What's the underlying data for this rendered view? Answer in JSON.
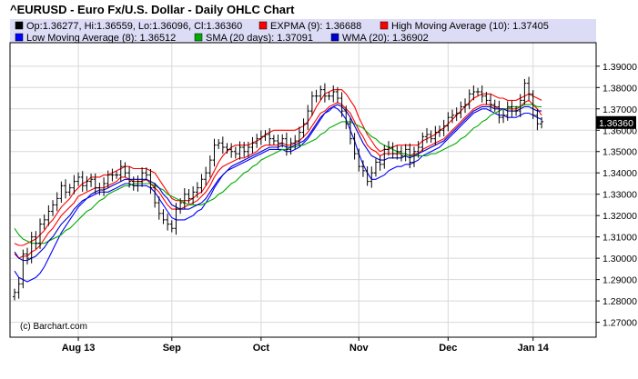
{
  "chart_data": {
    "type": "line",
    "title": "^EURUSD - Euro Fx/U.S. Dollar - Daily OHLC Chart",
    "legend": [
      {
        "text": "Op:1.36277, Hi:1.36559, Lo:1.36096, Cl:1.36360",
        "color": "#000000"
      },
      {
        "text": "EXPMA (9): 1.36688",
        "color": "#ff0000"
      },
      {
        "text": "High Moving Average (10): 1.37405",
        "color": "#ff0000"
      },
      {
        "text": "Low Moving Average (8): 1.36512",
        "color": "#0000ff"
      },
      {
        "text": "SMA (20 days): 1.37091",
        "color": "#00aa00"
      },
      {
        "text": "WMA (20): 1.36902",
        "color": "#0000cc"
      }
    ],
    "credit": "(c) Barchart.com",
    "last_value": "1.36360",
    "ylim": [
      1.263,
      1.401
    ],
    "y_ticks": [
      "1.27000",
      "1.28000",
      "1.29000",
      "1.30000",
      "1.31000",
      "1.32000",
      "1.33000",
      "1.34000",
      "1.35000",
      "1.36000",
      "1.37000",
      "1.38000",
      "1.39000"
    ],
    "x_ticks": [
      {
        "label": "Aug 13",
        "bar": 15
      },
      {
        "label": "Sep",
        "bar": 37
      },
      {
        "label": "Oct",
        "bar": 58
      },
      {
        "label": "Nov",
        "bar": 81
      },
      {
        "label": "Dec",
        "bar": 102
      },
      {
        "label": "Jan 14",
        "bar": 122
      }
    ],
    "x_range_bars": [
      0,
      127
    ],
    "close": [
      1.284,
      1.288,
      1.302,
      1.3,
      1.31,
      1.307,
      1.316,
      1.318,
      1.322,
      1.325,
      1.328,
      1.334,
      1.331,
      1.333,
      1.336,
      1.338,
      1.334,
      1.336,
      1.337,
      1.333,
      1.332,
      1.335,
      1.339,
      1.339,
      1.339,
      1.343,
      1.34,
      1.336,
      1.334,
      1.336,
      1.34,
      1.339,
      1.333,
      1.326,
      1.321,
      1.318,
      1.316,
      1.314,
      1.323,
      1.326,
      1.33,
      1.328,
      1.331,
      1.333,
      1.337,
      1.34,
      1.346,
      1.353,
      1.354,
      1.352,
      1.351,
      1.35,
      1.349,
      1.352,
      1.35,
      1.352,
      1.354,
      1.356,
      1.357,
      1.358,
      1.356,
      1.355,
      1.354,
      1.356,
      1.351,
      1.354,
      1.355,
      1.359,
      1.363,
      1.369,
      1.376,
      1.376,
      1.379,
      1.376,
      1.376,
      1.378,
      1.375,
      1.369,
      1.363,
      1.356,
      1.349,
      1.343,
      1.341,
      1.336,
      1.34,
      1.345,
      1.344,
      1.351,
      1.352,
      1.349,
      1.35,
      1.348,
      1.351,
      1.345,
      1.35,
      1.352,
      1.357,
      1.358,
      1.356,
      1.359,
      1.36,
      1.362,
      1.366,
      1.367,
      1.368,
      1.371,
      1.372,
      1.377,
      1.378,
      1.378,
      1.376,
      1.374,
      1.372,
      1.371,
      1.366,
      1.367,
      1.371,
      1.369,
      1.369,
      1.374,
      1.382,
      1.377,
      1.367,
      1.363,
      1.364
    ],
    "series": [
      {
        "name": "EXPMA (9)",
        "color": "#ff0000",
        "values": [
          1.302,
          1.3,
          1.301,
          1.301,
          1.303,
          1.304,
          1.306,
          1.309,
          1.312,
          1.314,
          1.317,
          1.32,
          1.322,
          1.324,
          1.326,
          1.329,
          1.33,
          1.331,
          1.332,
          1.333,
          1.333,
          1.333,
          1.334,
          1.335,
          1.336,
          1.338,
          1.338,
          1.337,
          1.336,
          1.336,
          1.336,
          1.337,
          1.335,
          1.333,
          1.331,
          1.328,
          1.325,
          1.323,
          1.323,
          1.323,
          1.324,
          1.325,
          1.326,
          1.327,
          1.329,
          1.331,
          1.334,
          1.338,
          1.341,
          1.343,
          1.344,
          1.345,
          1.346,
          1.347,
          1.347,
          1.348,
          1.349,
          1.35,
          1.352,
          1.353,
          1.353,
          1.353,
          1.353,
          1.354,
          1.353,
          1.353,
          1.354,
          1.355,
          1.357,
          1.359,
          1.362,
          1.365,
          1.368,
          1.369,
          1.371,
          1.372,
          1.373,
          1.372,
          1.37,
          1.368,
          1.364,
          1.36,
          1.357,
          1.353,
          1.351,
          1.35,
          1.348,
          1.349,
          1.349,
          1.349,
          1.349,
          1.349,
          1.349,
          1.348,
          1.349,
          1.349,
          1.351,
          1.352,
          1.353,
          1.354,
          1.355,
          1.356,
          1.358,
          1.36,
          1.362,
          1.364,
          1.366,
          1.368,
          1.37,
          1.371,
          1.372,
          1.372,
          1.372,
          1.371,
          1.37,
          1.37,
          1.37,
          1.37,
          1.37,
          1.371,
          1.373,
          1.374,
          1.372,
          1.37,
          1.367
        ]
      },
      {
        "name": "High Moving Average (10)",
        "color": "#ff0000",
        "values": [
          1.307,
          1.306,
          1.306,
          1.307,
          1.308,
          1.309,
          1.311,
          1.313,
          1.316,
          1.318,
          1.321,
          1.324,
          1.326,
          1.328,
          1.331,
          1.333,
          1.335,
          1.336,
          1.338,
          1.338,
          1.338,
          1.339,
          1.339,
          1.34,
          1.341,
          1.342,
          1.343,
          1.343,
          1.342,
          1.342,
          1.342,
          1.342,
          1.341,
          1.34,
          1.337,
          1.334,
          1.331,
          1.328,
          1.327,
          1.327,
          1.327,
          1.327,
          1.328,
          1.33,
          1.331,
          1.334,
          1.337,
          1.341,
          1.345,
          1.348,
          1.35,
          1.352,
          1.353,
          1.353,
          1.353,
          1.353,
          1.354,
          1.355,
          1.356,
          1.358,
          1.359,
          1.36,
          1.36,
          1.36,
          1.36,
          1.36,
          1.36,
          1.361,
          1.362,
          1.364,
          1.367,
          1.371,
          1.374,
          1.377,
          1.378,
          1.379,
          1.379,
          1.379,
          1.377,
          1.374,
          1.371,
          1.366,
          1.362,
          1.358,
          1.355,
          1.352,
          1.35,
          1.351,
          1.351,
          1.352,
          1.353,
          1.353,
          1.353,
          1.353,
          1.353,
          1.353,
          1.355,
          1.356,
          1.357,
          1.358,
          1.36,
          1.361,
          1.363,
          1.365,
          1.367,
          1.369,
          1.371,
          1.373,
          1.375,
          1.376,
          1.377,
          1.377,
          1.377,
          1.376,
          1.375,
          1.375,
          1.374,
          1.374,
          1.374,
          1.375,
          1.376,
          1.377,
          1.376,
          1.375,
          1.374
        ]
      },
      {
        "name": "Low Moving Average (8)",
        "color": "#0000ff",
        "values": [
          1.294,
          1.291,
          1.29,
          1.289,
          1.29,
          1.291,
          1.293,
          1.296,
          1.3,
          1.304,
          1.308,
          1.312,
          1.315,
          1.318,
          1.321,
          1.324,
          1.326,
          1.328,
          1.329,
          1.33,
          1.331,
          1.331,
          1.331,
          1.332,
          1.333,
          1.334,
          1.335,
          1.335,
          1.334,
          1.334,
          1.334,
          1.334,
          1.333,
          1.331,
          1.328,
          1.325,
          1.322,
          1.319,
          1.318,
          1.318,
          1.318,
          1.319,
          1.32,
          1.322,
          1.323,
          1.326,
          1.329,
          1.333,
          1.336,
          1.339,
          1.341,
          1.342,
          1.343,
          1.344,
          1.345,
          1.346,
          1.347,
          1.348,
          1.349,
          1.35,
          1.351,
          1.351,
          1.351,
          1.351,
          1.35,
          1.35,
          1.351,
          1.352,
          1.354,
          1.356,
          1.359,
          1.362,
          1.365,
          1.368,
          1.369,
          1.371,
          1.37,
          1.368,
          1.365,
          1.36,
          1.355,
          1.349,
          1.344,
          1.34,
          1.337,
          1.337,
          1.338,
          1.339,
          1.341,
          1.342,
          1.343,
          1.343,
          1.344,
          1.344,
          1.345,
          1.346,
          1.348,
          1.349,
          1.35,
          1.351,
          1.352,
          1.354,
          1.356,
          1.358,
          1.36,
          1.362,
          1.364,
          1.366,
          1.368,
          1.369,
          1.37,
          1.37,
          1.369,
          1.368,
          1.367,
          1.367,
          1.366,
          1.366,
          1.366,
          1.367,
          1.368,
          1.368,
          1.367,
          1.366,
          1.365
        ]
      },
      {
        "name": "SMA (20 days)",
        "color": "#00aa00",
        "values": [
          1.314,
          1.311,
          1.309,
          1.308,
          1.307,
          1.307,
          1.307,
          1.307,
          1.308,
          1.309,
          1.31,
          1.311,
          1.313,
          1.314,
          1.316,
          1.318,
          1.32,
          1.322,
          1.323,
          1.325,
          1.327,
          1.328,
          1.33,
          1.331,
          1.332,
          1.333,
          1.334,
          1.334,
          1.335,
          1.335,
          1.335,
          1.335,
          1.335,
          1.334,
          1.333,
          1.332,
          1.33,
          1.329,
          1.328,
          1.327,
          1.326,
          1.325,
          1.325,
          1.325,
          1.325,
          1.326,
          1.327,
          1.328,
          1.33,
          1.331,
          1.333,
          1.335,
          1.336,
          1.338,
          1.34,
          1.341,
          1.343,
          1.344,
          1.346,
          1.347,
          1.348,
          1.349,
          1.35,
          1.351,
          1.351,
          1.352,
          1.352,
          1.353,
          1.353,
          1.354,
          1.355,
          1.356,
          1.358,
          1.359,
          1.361,
          1.362,
          1.363,
          1.364,
          1.364,
          1.364,
          1.363,
          1.362,
          1.361,
          1.359,
          1.357,
          1.356,
          1.354,
          1.353,
          1.352,
          1.351,
          1.35,
          1.349,
          1.349,
          1.348,
          1.348,
          1.348,
          1.348,
          1.348,
          1.349,
          1.349,
          1.35,
          1.351,
          1.352,
          1.353,
          1.354,
          1.356,
          1.357,
          1.359,
          1.361,
          1.362,
          1.364,
          1.365,
          1.367,
          1.368,
          1.369,
          1.37,
          1.37,
          1.371,
          1.371,
          1.371,
          1.372,
          1.372,
          1.372,
          1.371,
          1.371
        ]
      },
      {
        "name": "WMA (20)",
        "color": "#0000cc",
        "values": [
          1.303,
          1.3,
          1.299,
          1.299,
          1.3,
          1.301,
          1.303,
          1.305,
          1.308,
          1.31,
          1.313,
          1.316,
          1.318,
          1.32,
          1.323,
          1.325,
          1.327,
          1.328,
          1.33,
          1.331,
          1.332,
          1.332,
          1.333,
          1.334,
          1.335,
          1.336,
          1.337,
          1.337,
          1.337,
          1.337,
          1.337,
          1.337,
          1.336,
          1.335,
          1.333,
          1.33,
          1.328,
          1.325,
          1.324,
          1.323,
          1.323,
          1.323,
          1.324,
          1.325,
          1.326,
          1.328,
          1.331,
          1.334,
          1.337,
          1.339,
          1.341,
          1.343,
          1.344,
          1.345,
          1.346,
          1.347,
          1.348,
          1.349,
          1.35,
          1.351,
          1.352,
          1.352,
          1.352,
          1.353,
          1.352,
          1.352,
          1.353,
          1.354,
          1.355,
          1.357,
          1.36,
          1.363,
          1.366,
          1.368,
          1.37,
          1.371,
          1.372,
          1.371,
          1.369,
          1.366,
          1.362,
          1.358,
          1.354,
          1.351,
          1.348,
          1.347,
          1.346,
          1.346,
          1.347,
          1.347,
          1.347,
          1.347,
          1.348,
          1.347,
          1.348,
          1.349,
          1.35,
          1.351,
          1.352,
          1.353,
          1.354,
          1.355,
          1.357,
          1.359,
          1.361,
          1.363,
          1.365,
          1.367,
          1.369,
          1.37,
          1.371,
          1.371,
          1.371,
          1.37,
          1.37,
          1.37,
          1.369,
          1.369,
          1.369,
          1.37,
          1.371,
          1.371,
          1.37,
          1.369,
          1.369
        ]
      }
    ]
  }
}
